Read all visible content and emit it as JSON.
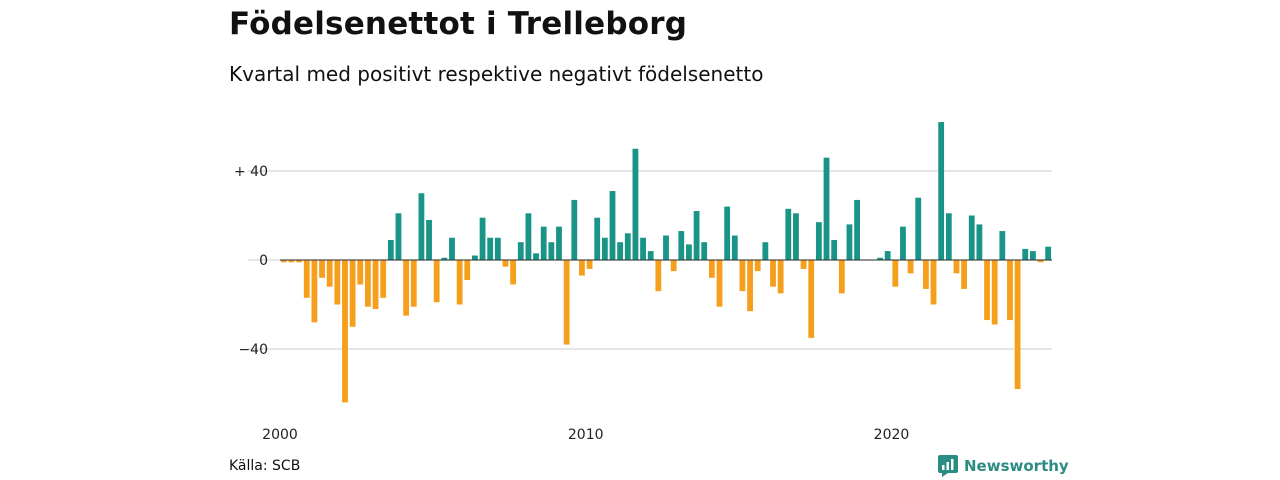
{
  "chart_data": {
    "type": "bar",
    "title": "Födelsenettot i Trelleborg",
    "subtitle": "Kvartal med positivt respektive negativt födelsenetto",
    "x_start": 2000,
    "periods_per_year": 4,
    "values": [
      -1,
      -1,
      -1,
      -17,
      -28,
      -8,
      -12,
      -20,
      -64,
      -30,
      -11,
      -21,
      -22,
      -17,
      9,
      21,
      -25,
      -21,
      30,
      18,
      -19,
      1,
      10,
      -20,
      -9,
      2,
      19,
      10,
      10,
      -3,
      -11,
      8,
      21,
      3,
      15,
      8,
      15,
      -38,
      27,
      -7,
      -4,
      19,
      10,
      31,
      8,
      12,
      50,
      10,
      4,
      -14,
      11,
      -5,
      13,
      7,
      22,
      8,
      -8,
      -21,
      24,
      11,
      -14,
      -23,
      -5,
      8,
      -12,
      -15,
      23,
      21,
      -4,
      -35,
      17,
      46,
      9,
      -15,
      16,
      27,
      0,
      0,
      1,
      4,
      -12,
      15,
      -6,
      28,
      -13,
      -20,
      62,
      21,
      -6,
      -13,
      20,
      16,
      -27,
      -29,
      13,
      -27,
      -58,
      5,
      4,
      -1,
      6
    ],
    "y_ticks": [
      40,
      0,
      -40
    ],
    "y_tick_labels": [
      "+ 40",
      "0",
      "−40"
    ],
    "ylim": [
      -66,
      66
    ],
    "x_ticks": [
      2000,
      2010,
      2020
    ],
    "x_tick_labels": [
      "2000",
      "2010",
      "2020"
    ],
    "positive_color": "#1a9486",
    "negative_color": "#f59f1c",
    "grid": true,
    "legend": "none"
  },
  "source": "Källa: SCB",
  "brand": {
    "name": "Newsworthy",
    "icon": "newsworthy-logo-icon",
    "color": "#2a8c82"
  }
}
